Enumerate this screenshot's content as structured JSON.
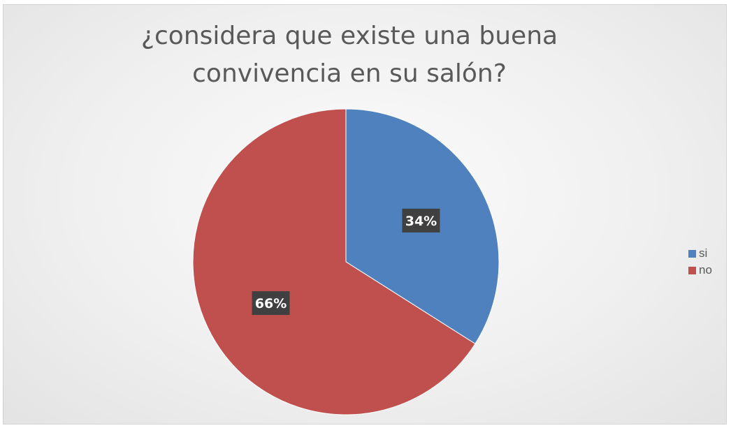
{
  "colors": {
    "si": "#4e81bd",
    "no": "#c0504d",
    "label_bg": "#404040"
  },
  "chart_data": {
    "type": "pie",
    "title": "¿considera que existe una buena convivencia en su salón?",
    "categories": [
      "si",
      "no"
    ],
    "values": [
      34,
      66
    ],
    "data_labels": [
      "34%",
      "66%"
    ],
    "legend_position": "right"
  }
}
